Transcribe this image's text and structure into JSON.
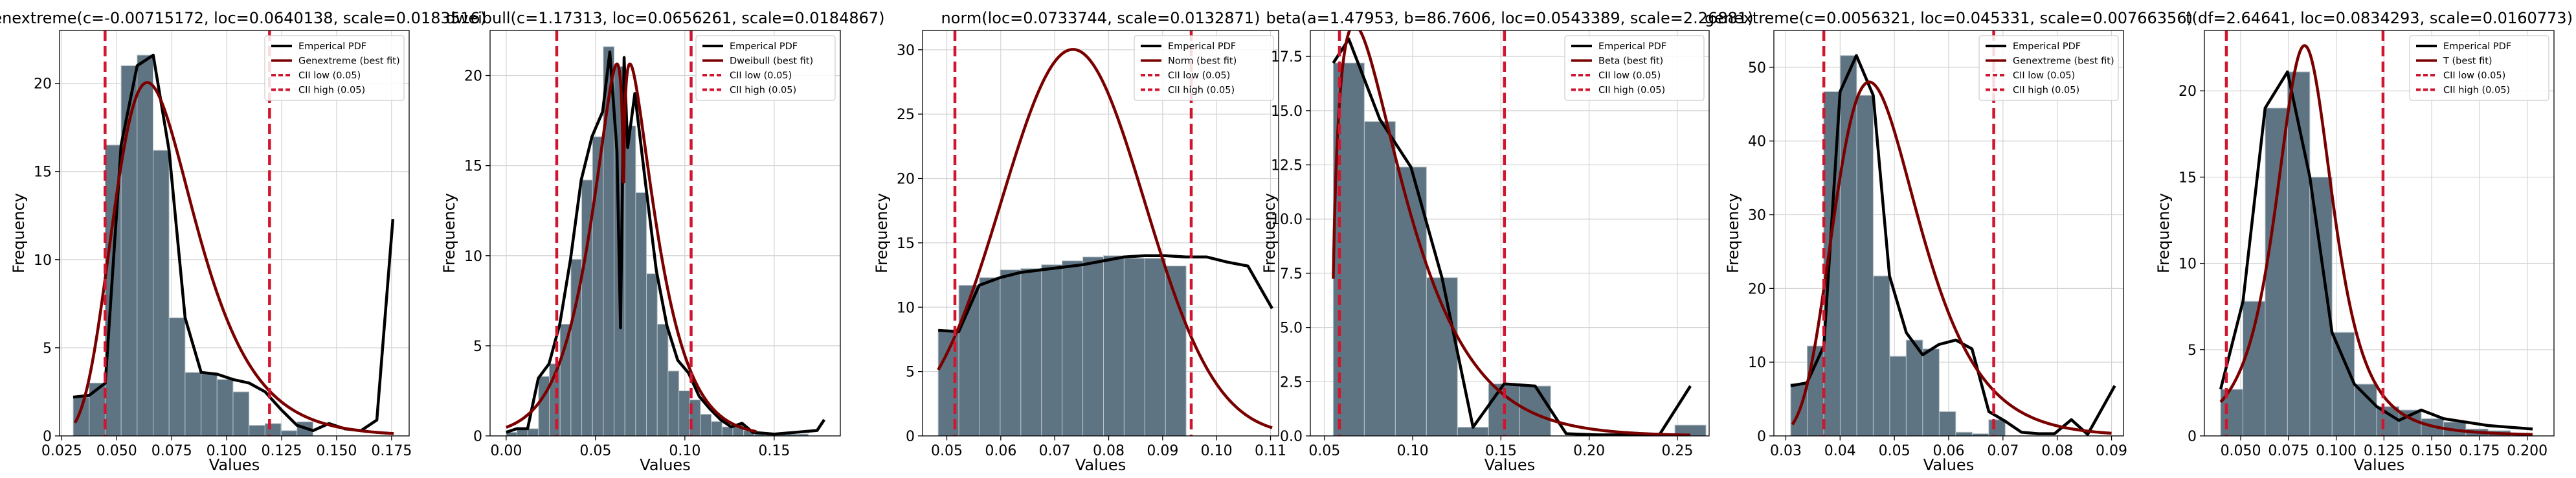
{
  "colors": {
    "bar_fill": "#5f7482",
    "bar_edge": "#b9c4cb",
    "pdf_line": "#000000",
    "fit_line": "#7a0000",
    "ci_line": "#d0162e",
    "grid": "#d3d3d3"
  },
  "chart_data": [
    {
      "type": "bar",
      "title": "genextreme(c=-0.00715172, loc=0.0640138, scale=0.0183516)",
      "xlabel": "Values",
      "ylabel": "Frequency",
      "xlim": [
        0.024,
        0.183
      ],
      "ylim": [
        0,
        23
      ],
      "xticks": [
        0.025,
        0.05,
        0.075,
        0.1,
        0.125,
        0.15,
        0.175
      ],
      "xtick_labels": [
        "0.025",
        "0.050",
        "0.075",
        "0.100",
        "0.125",
        "0.150",
        "0.175"
      ],
      "yticks": [
        0,
        5,
        10,
        15,
        20
      ],
      "ytick_labels": [
        "0",
        "5",
        "10",
        "15",
        "20"
      ],
      "grid": true,
      "legend_position": "top-right",
      "legend": [
        "Emperical PDF",
        "Genextreme (best fit)",
        "CII low (0.05)",
        "CII high (0.05)"
      ],
      "bins": {
        "start": 0.0302,
        "width": 0.00727,
        "values": [
          2.2,
          3.0,
          16.5,
          21.0,
          21.6,
          16.2,
          6.7,
          3.6,
          3.5,
          3.2,
          2.5,
          0.6,
          0.7,
          0.3,
          0.8,
          0.0
        ]
      },
      "empirical_pdf": {
        "x": [
          0.0302,
          0.0375,
          0.0448,
          0.052,
          0.0593,
          0.0666,
          0.0738,
          0.0811,
          0.0884,
          0.0957,
          0.1029,
          0.1102,
          0.1175,
          0.1247,
          0.132,
          0.1393,
          0.1465,
          0.1538,
          0.1611,
          0.1683,
          0.1756
        ],
        "y": [
          2.2,
          2.3,
          3.0,
          16.5,
          21.0,
          21.6,
          16.2,
          6.7,
          3.6,
          3.5,
          3.2,
          3.0,
          2.5,
          1.5,
          0.6,
          0.3,
          0.7,
          0.4,
          0.3,
          0.9,
          12.3
        ]
      },
      "fit_pdf": {
        "dist": "genextreme",
        "params": [
          -0.00715172,
          0.0640138,
          0.0183516
        ],
        "x_range": [
          0.031,
          0.176
        ]
      },
      "ci_low": 0.0447,
      "ci_high": 0.1195
    },
    {
      "type": "bar",
      "title": "dweibull(c=1.17313, loc=0.0656261, scale=0.0184867)",
      "xlabel": "Values",
      "ylabel": "Frequency",
      "xlim": [
        -0.009,
        0.187
      ],
      "ylim": [
        0,
        22.5
      ],
      "xticks": [
        0.0,
        0.05,
        0.1,
        0.15
      ],
      "xtick_labels": [
        "0.00",
        "0.05",
        "0.10",
        "0.15"
      ],
      "yticks": [
        0,
        5,
        10,
        15,
        20
      ],
      "ytick_labels": [
        "0",
        "5",
        "10",
        "15",
        "20"
      ],
      "grid": true,
      "legend_position": "top-right",
      "legend": [
        "Emperical PDF",
        "Dweibull (best fit)",
        "CII low (0.05)",
        "CII high (0.05)"
      ],
      "bins": {
        "start": 0.0,
        "width": 0.00604,
        "values": [
          0.2,
          0.4,
          0.4,
          3.3,
          4.0,
          6.2,
          9.8,
          14.2,
          16.6,
          21.6,
          20.5,
          17.2,
          13.5,
          9.0,
          6.2,
          3.6,
          2.5,
          2.0,
          1.2,
          0.8,
          0.5,
          0.6,
          0.3,
          0.2,
          0.1,
          0.1,
          0.1,
          0.1,
          0.0,
          0.0
        ]
      },
      "empirical_pdf": {
        "x": [
          0.0,
          0.006,
          0.012,
          0.018,
          0.024,
          0.03,
          0.036,
          0.042,
          0.048,
          0.054,
          0.058,
          0.062,
          0.064,
          0.066,
          0.068,
          0.072,
          0.078,
          0.084,
          0.09,
          0.096,
          0.102,
          0.108,
          0.114,
          0.12,
          0.126,
          0.132,
          0.138,
          0.15,
          0.162,
          0.174,
          0.178
        ],
        "y": [
          0.2,
          0.4,
          0.4,
          3.2,
          4.0,
          6.2,
          9.8,
          14.2,
          16.6,
          18.0,
          21.3,
          15.8,
          6.0,
          21.0,
          16.0,
          19.0,
          14.0,
          9.2,
          6.1,
          4.2,
          3.5,
          2.2,
          1.5,
          0.9,
          0.5,
          0.7,
          0.2,
          0.1,
          0.2,
          0.3,
          0.9
        ]
      },
      "fit_pdf": {
        "dist": "dweibull",
        "params": [
          1.17313,
          0.0656261,
          0.0184867
        ],
        "x_range": [
          0.0,
          0.14
        ]
      },
      "ci_low": 0.0283,
      "ci_high": 0.1035
    },
    {
      "type": "bar",
      "title": "norm(loc=0.0733744, scale=0.0132871)",
      "xlabel": "Values",
      "ylabel": "Frequency",
      "xlim": [
        0.0455,
        0.1115
      ],
      "ylim": [
        0,
        31.5
      ],
      "xticks": [
        0.05,
        0.06,
        0.07,
        0.08,
        0.09,
        0.1,
        0.11
      ],
      "xtick_labels": [
        "0.05",
        "0.06",
        "0.07",
        "0.08",
        "0.09",
        "0.10",
        "0.11"
      ],
      "yticks": [
        0,
        5,
        10,
        15,
        20,
        25,
        30
      ],
      "ytick_labels": [
        "0",
        "5",
        "10",
        "15",
        "20",
        "25",
        "30"
      ],
      "grid": true,
      "legend_position": "top-right",
      "legend": [
        "Emperical PDF",
        "Norm (best fit)",
        "CII low (0.05)",
        "CII high (0.05)"
      ],
      "bins": {
        "start": 0.0484,
        "width": 0.00383,
        "values": [
          8.2,
          11.7,
          12.3,
          12.9,
          13.0,
          13.3,
          13.6,
          13.9,
          14.0,
          13.8,
          13.8,
          13.2,
          0.0
        ]
      },
      "empirical_pdf": {
        "x": [
          0.0484,
          0.0522,
          0.056,
          0.0599,
          0.0637,
          0.0675,
          0.0714,
          0.0752,
          0.079,
          0.0829,
          0.0867,
          0.0905,
          0.0943,
          0.0982,
          0.102,
          0.1058,
          0.1103
        ],
        "y": [
          8.2,
          8.1,
          11.7,
          12.3,
          12.7,
          12.9,
          13.1,
          13.3,
          13.6,
          13.9,
          14.0,
          14.0,
          13.9,
          13.9,
          13.5,
          13.2,
          9.9
        ]
      },
      "fit_pdf": {
        "dist": "norm",
        "params": [
          0.0733744,
          0.0132871
        ],
        "x_range": [
          0.0484,
          0.1103
        ]
      },
      "ci_low": 0.0515,
      "ci_high": 0.0953
    },
    {
      "type": "bar",
      "title": "beta(a=1.47953, b=86.7606, loc=0.0543389, scale=2.26881)",
      "xlabel": "Values",
      "ylabel": "Frequency",
      "xlim": [
        0.042,
        0.268
      ],
      "ylim": [
        0,
        18.7
      ],
      "xticks": [
        0.05,
        0.1,
        0.15,
        0.2,
        0.25
      ],
      "xtick_labels": [
        "0.05",
        "0.10",
        "0.15",
        "0.20",
        "0.25"
      ],
      "yticks": [
        0.0,
        2.5,
        5.0,
        7.5,
        10.0,
        12.5,
        15.0,
        17.5
      ],
      "ytick_labels": [
        "0.0",
        "2.5",
        "5.0",
        "7.5",
        "10.0",
        "12.5",
        "15.0",
        "17.5"
      ],
      "grid": true,
      "legend_position": "top-right",
      "legend": [
        "Emperical PDF",
        "Beta (best fit)",
        "CII low (0.05)",
        "CII high (0.05)"
      ],
      "bins": {
        "start": 0.055,
        "width": 0.0176,
        "values": [
          17.2,
          14.5,
          12.4,
          7.3,
          0.4,
          2.4,
          2.3,
          0.0,
          0.0,
          0.0,
          0.0,
          0.5
        ]
      },
      "empirical_pdf": {
        "x": [
          0.055,
          0.0638,
          0.0814,
          0.099,
          0.1166,
          0.1342,
          0.1518,
          0.1694,
          0.187,
          0.2046,
          0.2222,
          0.2398,
          0.2574
        ],
        "y": [
          17.2,
          18.3,
          14.6,
          12.4,
          7.3,
          0.4,
          2.4,
          2.3,
          0.1,
          0.05,
          0.05,
          0.05,
          2.3
        ]
      },
      "fit_pdf": {
        "dist": "beta",
        "params": [
          1.47953,
          86.7606,
          0.0543389,
          2.26881
        ],
        "x_range": [
          0.055,
          0.2574
        ]
      },
      "ci_low": 0.0585,
      "ci_high": 0.152
    },
    {
      "type": "bar",
      "title": "genextreme(c=0.0056321, loc=0.045331, scale=0.00766356)",
      "xlabel": "Values",
      "ylabel": "Frequency",
      "xlim": [
        0.0278,
        0.0922
      ],
      "ylim": [
        0,
        55
      ],
      "xticks": [
        0.03,
        0.04,
        0.05,
        0.06,
        0.07,
        0.08,
        0.09
      ],
      "xtick_labels": [
        "0.03",
        "0.04",
        "0.05",
        "0.06",
        "0.07",
        "0.08",
        "0.09"
      ],
      "yticks": [
        0,
        10,
        20,
        30,
        40,
        50
      ],
      "ytick_labels": [
        "0",
        "10",
        "20",
        "30",
        "40",
        "50"
      ],
      "grid": true,
      "legend_position": "top-right",
      "legend": [
        "Emperical PDF",
        "Genextreme (best fit)",
        "CII low (0.05)",
        "CII high (0.05)"
      ],
      "bins": {
        "start": 0.0309,
        "width": 0.00304,
        "values": [
          7.1,
          12.2,
          46.7,
          51.6,
          46.2,
          21.7,
          10.8,
          13.0,
          11.8,
          3.3,
          0.5,
          0.3,
          2.2,
          0.0
        ]
      },
      "empirical_pdf": {
        "x": [
          0.0309,
          0.0339,
          0.037,
          0.04,
          0.043,
          0.0461,
          0.0491,
          0.0522,
          0.0552,
          0.0582,
          0.0613,
          0.0643,
          0.0674,
          0.0704,
          0.0734,
          0.0765,
          0.0795,
          0.0826,
          0.0856,
          0.0906
        ],
        "y": [
          6.8,
          7.2,
          12.2,
          46.7,
          51.6,
          46.2,
          21.7,
          14.0,
          11.0,
          12.4,
          13.0,
          11.8,
          3.3,
          2.0,
          0.5,
          0.3,
          0.3,
          2.2,
          0.2,
          6.8
        ]
      },
      "fit_pdf": {
        "dist": "genextreme",
        "params": [
          0.0056321,
          0.045331,
          0.00766356
        ],
        "x_range": [
          0.0312,
          0.09
        ]
      },
      "ci_low": 0.037,
      "ci_high": 0.0683
    },
    {
      "type": "bar",
      "title": "t(df=2.64641, loc=0.0834293, scale=0.0160773)",
      "xlabel": "Values",
      "ylabel": "Frequency",
      "xlim": [
        0.031,
        0.214
      ],
      "ylim": [
        0,
        23.5
      ],
      "xticks": [
        0.05,
        0.075,
        0.1,
        0.125,
        0.15,
        0.175,
        0.2
      ],
      "xtick_labels": [
        "0.050",
        "0.075",
        "0.100",
        "0.125",
        "0.150",
        "0.175",
        "0.200"
      ],
      "yticks": [
        0,
        5,
        10,
        15,
        20
      ],
      "ytick_labels": [
        "0",
        "5",
        "10",
        "15",
        "20"
      ],
      "grid": true,
      "legend_position": "top-right",
      "legend": [
        "Emperical PDF",
        "T (best fit)",
        "CII low (0.05)",
        "CII high (0.05)"
      ],
      "bins": {
        "start": 0.0395,
        "width": 0.01167,
        "values": [
          2.7,
          7.8,
          19.0,
          21.1,
          15.0,
          6.0,
          3.0,
          1.7,
          1.5,
          1.0,
          0.8,
          0.4,
          0.3,
          0.0,
          0.0
        ]
      },
      "empirical_pdf": {
        "x": [
          0.0395,
          0.0512,
          0.0628,
          0.0745,
          0.0862,
          0.0978,
          0.1095,
          0.1212,
          0.1328,
          0.1445,
          0.1562,
          0.1678,
          0.1795,
          0.1912,
          0.2028
        ],
        "y": [
          2.7,
          7.8,
          19.0,
          21.1,
          15.0,
          6.0,
          3.0,
          1.7,
          0.9,
          1.5,
          1.0,
          0.8,
          0.6,
          0.5,
          0.4
        ]
      },
      "fit_pdf": {
        "dist": "t",
        "params": [
          2.64641,
          0.0834293,
          0.0160773
        ],
        "x_range": [
          0.0395,
          0.2028
        ]
      },
      "ci_low": 0.0425,
      "ci_high": 0.1245
    }
  ]
}
